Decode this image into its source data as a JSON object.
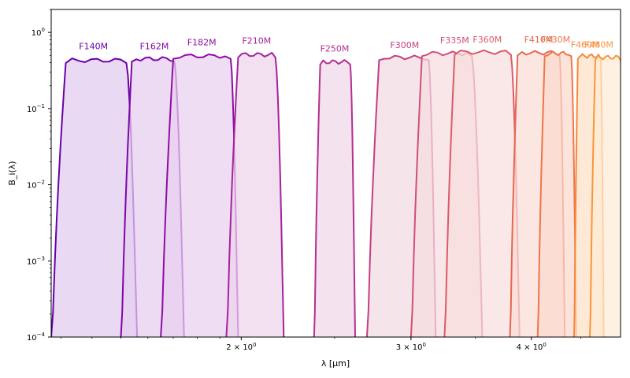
{
  "chart_data": {
    "type": "area",
    "title": "",
    "xlabel": "λ [μm]",
    "ylabel": "B_i(λ)",
    "xscale": "log",
    "yscale": "log",
    "xlim": [
      1.27,
      4.95
    ],
    "ylim": [
      0.0001,
      2.0
    ],
    "grid": false,
    "x_ticks": [
      {
        "value": 2.0,
        "base": "2 × 10",
        "exp": "0"
      },
      {
        "value": 3.0,
        "base": "3 × 10",
        "exp": "0"
      },
      {
        "value": 4.0,
        "base": "4 × 10",
        "exp": "0"
      }
    ],
    "y_ticks": [
      {
        "value": 0.0001,
        "base": "10",
        "exp": "−4"
      },
      {
        "value": 0.001,
        "base": "10",
        "exp": "−3"
      },
      {
        "value": 0.01,
        "base": "10",
        "exp": "−2"
      },
      {
        "value": 0.1,
        "base": "10",
        "exp": "−1"
      },
      {
        "value": 1.0,
        "base": "10",
        "exp": "0"
      }
    ],
    "series": [
      {
        "name": "F140M",
        "color": "#6a00a8",
        "fill": "#e0cbee",
        "start": 1.27,
        "end": 1.565,
        "cuton": 1.315,
        "cutoff": 1.52,
        "peak": 0.43,
        "label_x": 1.405,
        "label_y": 0.6
      },
      {
        "name": "F162M",
        "color": "#7f06a6",
        "fill": "#e4cdee",
        "start": 1.5,
        "end": 1.75,
        "cuton": 1.54,
        "cutoff": 1.705,
        "peak": 0.45,
        "label_x": 1.625,
        "label_y": 0.6
      },
      {
        "name": "F182M",
        "color": "#8f0da4",
        "fill": "#e8d0ee",
        "start": 1.65,
        "end": 1.99,
        "cuton": 1.7,
        "cutoff": 1.95,
        "peak": 0.49,
        "label_x": 1.82,
        "label_y": 0.68
      },
      {
        "name": "F210M",
        "color": "#a6229c",
        "fill": "#edd4eb",
        "start": 1.93,
        "end": 2.22,
        "cuton": 1.985,
        "cutoff": 2.17,
        "peak": 0.51,
        "label_x": 2.075,
        "label_y": 0.71
      },
      {
        "name": "F250M",
        "color": "#b32f92",
        "fill": "#f0d7e9",
        "start": 2.38,
        "end": 2.63,
        "cuton": 2.415,
        "cutoff": 2.595,
        "peak": 0.41,
        "label_x": 2.5,
        "label_y": 0.56
      },
      {
        "name": "F300M",
        "color": "#c43e84",
        "fill": "#f3dae3",
        "start": 2.7,
        "end": 3.19,
        "cuton": 2.78,
        "cutoff": 3.13,
        "peak": 0.47,
        "label_x": 2.955,
        "label_y": 0.62
      },
      {
        "name": "F335M",
        "color": "#d04f76",
        "fill": "#f5dcdf",
        "start": 3.0,
        "end": 3.57,
        "cuton": 3.08,
        "cutoff": 3.47,
        "peak": 0.53,
        "label_x": 3.33,
        "label_y": 0.72
      },
      {
        "name": "F360M",
        "color": "#db5b68",
        "fill": "#f8dede",
        "start": 3.25,
        "end": 3.9,
        "cuton": 3.33,
        "cutoff": 3.81,
        "peak": 0.55,
        "label_x": 3.6,
        "label_y": 0.74
      },
      {
        "name": "F410M",
        "color": "#e6664f",
        "fill": "#fadcd5",
        "start": 3.8,
        "end": 4.34,
        "cuton": 3.87,
        "cutoff": 4.28,
        "peak": 0.54,
        "label_x": 4.07,
        "label_y": 0.74
      },
      {
        "name": "F430M",
        "color": "#ee7648",
        "fill": "#fbdacd",
        "start": 4.06,
        "end": 4.46,
        "cuton": 4.13,
        "cutoff": 4.4,
        "peak": 0.53,
        "label_x": 4.24,
        "label_y": 0.74
      },
      {
        "name": "F460M",
        "color": "#f6873f",
        "fill": "#fde0c6",
        "start": 4.43,
        "end": 4.76,
        "cuton": 4.47,
        "cutoff": 4.72,
        "peak": 0.49,
        "label_x": 4.55,
        "label_y": 0.63
      },
      {
        "name": "F480M",
        "color": "#f9953a",
        "fill": "#fdebd6",
        "start": 4.6,
        "end": 5.05,
        "cuton": 4.66,
        "cutoff": 4.95,
        "peak": 0.47,
        "label_x": 4.7,
        "label_y": 0.63
      }
    ]
  }
}
